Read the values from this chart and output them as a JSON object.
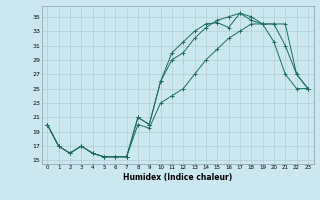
{
  "xlabel": "Humidex (Indice chaleur)",
  "background_color": "#cbe8f0",
  "grid_color": "#b0cdd5",
  "line_color": "#1e6b5e",
  "xlim": [
    -0.5,
    23.5
  ],
  "ylim": [
    14.5,
    36.5
  ],
  "yticks": [
    15,
    17,
    19,
    21,
    23,
    25,
    27,
    29,
    31,
    33,
    35
  ],
  "xticks": [
    0,
    1,
    2,
    3,
    4,
    5,
    6,
    7,
    8,
    9,
    10,
    11,
    12,
    13,
    14,
    15,
    16,
    17,
    18,
    19,
    20,
    21,
    22,
    23
  ],
  "series1_x": [
    0,
    1,
    2,
    3,
    4,
    5,
    6,
    7,
    8,
    9,
    10,
    11,
    12,
    13,
    14,
    15,
    16,
    17,
    18,
    19,
    20,
    21,
    22,
    23
  ],
  "series1_y": [
    20,
    17,
    16,
    17,
    16,
    15.5,
    15.5,
    15.5,
    21,
    20,
    26,
    30,
    31.5,
    33,
    34,
    34.2,
    33.5,
    35.5,
    35,
    34,
    31.5,
    27,
    25,
    25
  ],
  "series2_x": [
    0,
    1,
    2,
    3,
    4,
    5,
    6,
    7,
    8,
    9,
    10,
    11,
    12,
    13,
    14,
    15,
    16,
    17,
    18,
    19,
    20,
    21,
    22,
    23
  ],
  "series2_y": [
    20,
    17,
    16,
    17,
    16,
    15.5,
    15.5,
    15.5,
    21,
    20,
    26,
    29,
    30,
    32,
    33.5,
    34.5,
    35,
    35.5,
    34.5,
    34,
    34,
    31,
    27,
    25
  ],
  "series3_x": [
    0,
    1,
    2,
    3,
    4,
    5,
    6,
    7,
    8,
    9,
    10,
    11,
    12,
    13,
    14,
    15,
    16,
    17,
    18,
    19,
    20,
    21,
    22,
    23
  ],
  "series3_y": [
    20,
    17,
    16,
    17,
    16,
    15.5,
    15.5,
    15.5,
    20,
    19.5,
    23,
    24,
    25,
    27,
    29,
    30.5,
    32,
    33,
    34,
    34,
    34,
    34,
    27,
    25
  ]
}
